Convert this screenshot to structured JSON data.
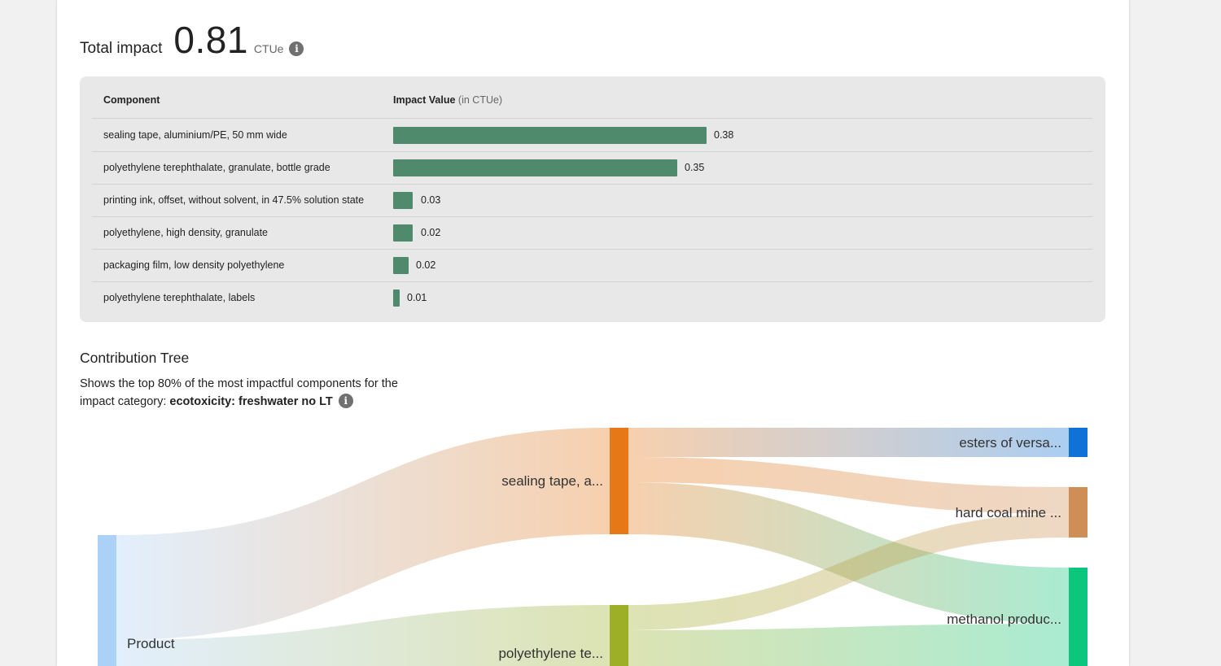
{
  "total_impact": {
    "label": "Total impact",
    "value": "0.81",
    "unit": "CTUe",
    "info_icon": "info-icon"
  },
  "table": {
    "col_component": "Component",
    "col_impact": "Impact Value",
    "col_impact_unit": "(in CTUe)",
    "bar_color": "#4f8a6d",
    "rows": [
      {
        "name": "sealing tape, aluminium/PE, 50 mm wide",
        "value": "0.38",
        "amount": 0.38
      },
      {
        "name": "polyethylene terephthalate, granulate, bottle grade",
        "value": "0.35",
        "amount": 0.35
      },
      {
        "name": "printing ink, offset, without solvent, in 47.5% solution state",
        "value": "0.03",
        "amount": 0.03
      },
      {
        "name": "polyethylene, high density, granulate",
        "value": "0.02",
        "amount": 0.02
      },
      {
        "name": "packaging film, low density polyethylene",
        "value": "0.02",
        "amount": 0.015
      },
      {
        "name": "polyethylene terephthalate, labels",
        "value": "0.01",
        "amount": 0.01
      }
    ]
  },
  "contribution_tree": {
    "title": "Contribution Tree",
    "desc_prefix": "Shows the top 80% of the most impactful components for the impact category: ",
    "category": "ecotoxicity: freshwater no LT",
    "info_icon": "info-icon",
    "nodes": [
      {
        "id": "product",
        "label": "Product",
        "color": "#abd1f7"
      },
      {
        "id": "sealing",
        "label": "sealing tape, a...",
        "color": "#e77818"
      },
      {
        "id": "pet",
        "label": "polyethylene te...",
        "color": "#9caf27"
      },
      {
        "id": "esters",
        "label": "esters of versa...",
        "color": "#0e72d9"
      },
      {
        "id": "coal",
        "label": "hard coal mine ...",
        "color": "#cf8e55"
      },
      {
        "id": "methanol",
        "label": "methanol produc...",
        "color": "#0bc67c"
      }
    ]
  }
}
